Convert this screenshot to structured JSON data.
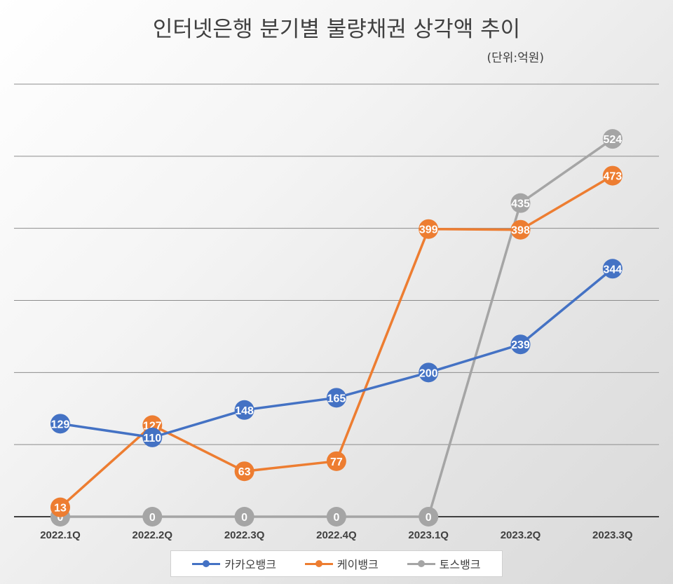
{
  "chart_data": {
    "type": "line",
    "title": "인터넷은행 분기별 불량채권 상각액 추이",
    "unit": "(단위:억원)",
    "categories": [
      "2022.1Q",
      "2022.2Q",
      "2022.3Q",
      "2022.4Q",
      "2023.1Q",
      "2023.2Q",
      "2023.3Q"
    ],
    "ylim": [
      0,
      600
    ],
    "grid": true,
    "legend_position": "bottom",
    "series": [
      {
        "name": "카카오뱅크",
        "color": "#4472C4",
        "values": [
          129,
          110,
          148,
          165,
          200,
          239,
          344
        ]
      },
      {
        "name": "케이뱅크",
        "color": "#ED7D31",
        "values": [
          13,
          127,
          63,
          77,
          399,
          398,
          473
        ]
      },
      {
        "name": "토스뱅크",
        "color": "#A5A5A5",
        "values": [
          0,
          0,
          0,
          0,
          0,
          435,
          524
        ]
      }
    ]
  }
}
